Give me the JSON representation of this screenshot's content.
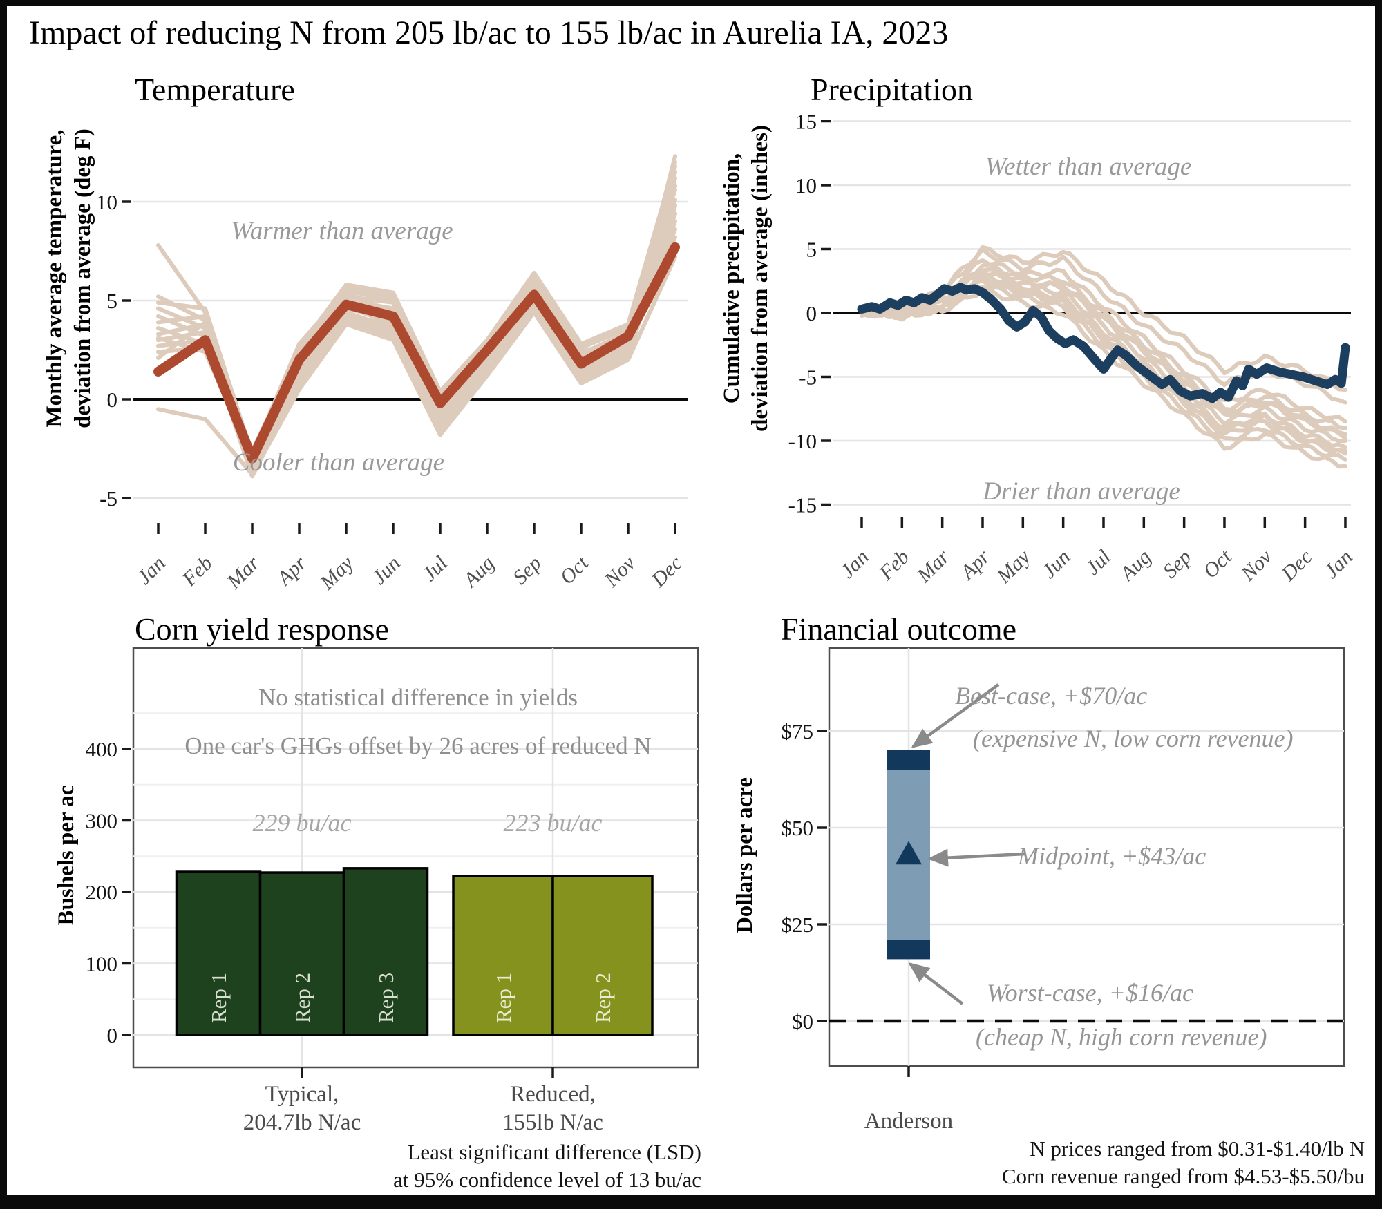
{
  "title": "Impact of reducing N from 205 lb/ac to 155 lb/ac in Aurelia IA, 2023",
  "colors": {
    "highlight_red": "#ad492e",
    "context_tan": "#ddcbbc",
    "navy": "#1d3f5f",
    "dark_green": "#1d421d",
    "olive_green": "#85921e",
    "range_blue": "#7f9cb5",
    "cap_navy": "#12395c",
    "grid_light": "#e4e4e4",
    "grid_minor": "#f0f0f0",
    "annotation_gray": "#999999",
    "arrow_gray": "#8a8a8a",
    "panel_border": "#4d4d4d"
  },
  "chart_data": [
    {
      "id": "temperature",
      "type": "line",
      "title": "Temperature",
      "ylabel_line1": "Monthly average temperature,",
      "ylabel_line2": "deviation from average (deg F)",
      "annotation_above": "Warmer than average",
      "annotation_below": "Cooler than average",
      "x_tick_labels": [
        "Jan",
        "Feb",
        "Mar",
        "Apr",
        "May",
        "Jun",
        "Jul",
        "Aug",
        "Sep",
        "Oct",
        "Nov",
        "Dec"
      ],
      "y_ticks": [
        -5,
        0,
        5,
        10
      ],
      "ylim": [
        -6.5,
        13
      ],
      "zero_line": true,
      "series": [
        {
          "name": "2023",
          "color": "#ad492e",
          "values": [
            1.4,
            3.0,
            -3.0,
            2.0,
            4.8,
            4.2,
            -0.2,
            2.5,
            5.3,
            1.8,
            3.2,
            7.7
          ]
        }
      ],
      "context_series_approx": [
        [
          7.8,
          4.4,
          -3.3,
          1.6,
          5.0,
          4.6,
          -0.6,
          2.2,
          5.8,
          2.2,
          3.0,
          12.3
        ],
        [
          5.2,
          4.0,
          -3.6,
          1.2,
          4.4,
          3.6,
          -1.2,
          1.8,
          5.2,
          1.4,
          2.6,
          11.2
        ],
        [
          4.6,
          3.6,
          -2.6,
          2.4,
          5.6,
          5.2,
          0.3,
          2.9,
          6.2,
          2.6,
          3.6,
          10.6
        ],
        [
          4.2,
          3.2,
          -3.9,
          0.8,
          4.0,
          3.2,
          -1.6,
          1.4,
          4.7,
          1.0,
          2.2,
          9.4
        ],
        [
          3.9,
          4.2,
          -3.1,
          2.0,
          5.2,
          4.9,
          -0.3,
          2.6,
          5.6,
          2.0,
          3.3,
          10.1
        ],
        [
          3.6,
          2.8,
          -3.4,
          1.4,
          4.6,
          4.0,
          -0.9,
          2.0,
          5.0,
          1.6,
          2.8,
          8.6
        ],
        [
          3.3,
          3.8,
          -2.9,
          2.2,
          5.4,
          4.4,
          0.1,
          2.7,
          6.0,
          2.4,
          3.1,
          9.0
        ],
        [
          3.0,
          3.4,
          -3.7,
          1.0,
          4.2,
          3.4,
          -1.4,
          1.6,
          4.9,
          1.2,
          2.4,
          11.8
        ],
        [
          2.7,
          3.0,
          -2.7,
          1.8,
          5.0,
          4.2,
          -0.5,
          2.3,
          5.4,
          1.8,
          2.9,
          8.2
        ],
        [
          2.4,
          2.6,
          -3.2,
          1.5,
          4.7,
          3.8,
          -1.0,
          2.1,
          5.1,
          1.5,
          2.7,
          10.8
        ],
        [
          2.1,
          3.9,
          -3.5,
          2.6,
          5.8,
          5.4,
          0.4,
          3.0,
          6.4,
          2.8,
          3.8,
          12.0
        ],
        [
          -0.5,
          -1.0,
          -3.8,
          0.5,
          3.8,
          3.0,
          -1.8,
          1.2,
          4.4,
          0.8,
          2.0,
          7.2
        ],
        [
          4.9,
          4.6,
          -2.8,
          2.8,
          5.5,
          5.0,
          0.0,
          2.8,
          5.9,
          2.3,
          3.4,
          11.5
        ],
        [
          3.1,
          2.4,
          -3.0,
          1.1,
          4.3,
          3.7,
          -0.8,
          1.9,
          4.8,
          1.3,
          2.5,
          9.8
        ]
      ]
    },
    {
      "id": "precipitation",
      "type": "line",
      "title": "Precipitation",
      "ylabel_line1": "Cumulative precipitation,",
      "ylabel_line2": "deviation from average (inches)",
      "annotation_above": "Wetter than average",
      "annotation_below": "Drier than average",
      "x_tick_labels": [
        "Jan",
        "Feb",
        "Mar",
        "Apr",
        "May",
        "Jun",
        "Jul",
        "Aug",
        "Sep",
        "Oct",
        "Nov",
        "Dec",
        "Jan"
      ],
      "y_ticks": [
        -15,
        -10,
        -5,
        0,
        5,
        10,
        15
      ],
      "ylim": [
        -16.5,
        16.5
      ],
      "zero_line": true,
      "main_series": {
        "name": "2023",
        "color": "#1d3f5f",
        "points": [
          [
            0,
            0.3
          ],
          [
            0.25,
            0.5
          ],
          [
            0.45,
            0.3
          ],
          [
            0.7,
            0.8
          ],
          [
            0.9,
            0.6
          ],
          [
            1.1,
            1.0
          ],
          [
            1.3,
            0.8
          ],
          [
            1.5,
            1.2
          ],
          [
            1.7,
            1.0
          ],
          [
            1.9,
            1.5
          ],
          [
            2.05,
            1.9
          ],
          [
            2.25,
            1.7
          ],
          [
            2.45,
            2.0
          ],
          [
            2.6,
            1.8
          ],
          [
            2.8,
            1.9
          ],
          [
            3.0,
            1.6
          ],
          [
            3.2,
            1.1
          ],
          [
            3.45,
            0.3
          ],
          [
            3.65,
            -0.6
          ],
          [
            3.85,
            -1.1
          ],
          [
            4.05,
            -0.7
          ],
          [
            4.25,
            0.2
          ],
          [
            4.45,
            -0.3
          ],
          [
            4.65,
            -1.4
          ],
          [
            4.85,
            -2.0
          ],
          [
            5.05,
            -2.4
          ],
          [
            5.25,
            -2.1
          ],
          [
            5.5,
            -2.6
          ],
          [
            5.8,
            -3.7
          ],
          [
            6.0,
            -4.4
          ],
          [
            6.2,
            -3.5
          ],
          [
            6.35,
            -2.9
          ],
          [
            6.55,
            -3.3
          ],
          [
            6.85,
            -4.2
          ],
          [
            7.15,
            -4.9
          ],
          [
            7.45,
            -5.6
          ],
          [
            7.65,
            -5.2
          ],
          [
            7.9,
            -6.1
          ],
          [
            8.15,
            -6.5
          ],
          [
            8.45,
            -6.3
          ],
          [
            8.7,
            -6.7
          ],
          [
            8.9,
            -6.2
          ],
          [
            9.1,
            -6.6
          ],
          [
            9.3,
            -5.3
          ],
          [
            9.45,
            -5.7
          ],
          [
            9.6,
            -4.4
          ],
          [
            9.8,
            -4.8
          ],
          [
            10.05,
            -4.3
          ],
          [
            10.35,
            -4.6
          ],
          [
            10.65,
            -4.8
          ],
          [
            10.95,
            -5.0
          ],
          [
            11.25,
            -5.3
          ],
          [
            11.55,
            -5.6
          ],
          [
            11.75,
            -5.2
          ],
          [
            11.9,
            -5.5
          ],
          [
            12,
            -2.7
          ]
        ]
      },
      "context_series_approx": [
        [
          0,
          0.2,
          1.5,
          4.8,
          3.5,
          4.2,
          1.5,
          -1.0,
          -3.0,
          -5.5,
          -4.5,
          -5.5,
          -7.0
        ],
        [
          0,
          0.1,
          1.2,
          4.2,
          3.0,
          3.2,
          0.5,
          -2.0,
          -4.5,
          -7.0,
          -6.0,
          -7.5,
          -8.5
        ],
        [
          0,
          -0.2,
          0.8,
          3.5,
          2.5,
          2.0,
          -0.5,
          -3.0,
          -5.5,
          -8.0,
          -7.0,
          -8.5,
          -9.5
        ],
        [
          0,
          0.3,
          1.8,
          5.0,
          4.0,
          4.8,
          2.5,
          0.0,
          -2.0,
          -4.5,
          -3.5,
          -4.5,
          -6.0
        ],
        [
          0,
          0.0,
          0.5,
          2.8,
          1.8,
          1.2,
          -1.5,
          -4.0,
          -6.5,
          -9.0,
          -8.0,
          -9.5,
          -10.5
        ],
        [
          0,
          -0.3,
          0.3,
          2.2,
          1.2,
          0.5,
          -2.5,
          -5.0,
          -7.5,
          -10.0,
          -9.0,
          -10.5,
          -11.5
        ],
        [
          0,
          0.2,
          1.0,
          3.8,
          2.8,
          2.6,
          0.0,
          -2.5,
          -5.0,
          -7.5,
          -6.5,
          -8.0,
          -9.0
        ],
        [
          0,
          0.1,
          0.6,
          3.0,
          2.0,
          1.6,
          -1.0,
          -3.5,
          -6.0,
          -8.5,
          -7.5,
          -9.0,
          -10.0
        ],
        [
          0,
          -0.1,
          0.4,
          2.5,
          1.5,
          0.8,
          -2.0,
          -4.5,
          -7.0,
          -9.5,
          -8.5,
          -10.0,
          -11.0
        ],
        [
          0,
          0.0,
          0.9,
          3.2,
          2.2,
          2.2,
          -0.2,
          -2.8,
          -5.2,
          -7.8,
          -6.8,
          -8.2,
          -9.8
        ],
        [
          0,
          -0.2,
          0.2,
          1.8,
          0.8,
          0.0,
          -3.0,
          -5.5,
          -8.0,
          -10.5,
          -9.5,
          -11.0,
          -12.0
        ],
        [
          0,
          0.1,
          0.7,
          2.6,
          1.6,
          1.0,
          -1.8,
          -4.2,
          -6.8,
          -9.2,
          -8.2,
          -9.8,
          -10.8
        ]
      ]
    },
    {
      "id": "corn_yield",
      "type": "bar",
      "title": "Corn yield response",
      "ylabel": "Bushels per ac",
      "y_ticks": [
        0,
        100,
        200,
        300,
        400
      ],
      "ylim": [
        -45,
        465
      ],
      "note1": "No statistical difference in yields",
      "note2": "One car's GHGs offset by 26 acres of reduced N",
      "groups": [
        {
          "label_line1": "Typical,",
          "label_line2": "204.7lb N/ac",
          "mean_label": "229 bu/ac",
          "color": "#1d421d",
          "bars": [
            {
              "label": "Rep 1",
              "value": 228
            },
            {
              "label": "Rep 2",
              "value": 227
            },
            {
              "label": "Rep 3",
              "value": 233
            }
          ]
        },
        {
          "label_line1": "Reduced,",
          "label_line2": "155lb N/ac",
          "mean_label": "223 bu/ac",
          "color": "#85921e",
          "bars": [
            {
              "label": "Rep 1",
              "value": 222
            },
            {
              "label": "Rep 2",
              "value": 222
            }
          ]
        }
      ],
      "caption_line1": "Least significant difference (LSD)",
      "caption_line2": "at 95% confidence level of 13 bu/ac"
    },
    {
      "id": "financial_outcome",
      "type": "range-bar",
      "title": "Financial outcome",
      "ylabel": "Dollars per acre",
      "y_ticks": [
        0,
        25,
        50,
        75
      ],
      "y_tick_labels": [
        "$0",
        "$25",
        "$50",
        "$75"
      ],
      "x_label": "Anderson",
      "zero_line_dashed": true,
      "bar": {
        "min": 16,
        "max": 70,
        "midpoint": 43,
        "cap_dollars": 5,
        "color_range": "#7f9cb5",
        "color_caps": "#12395c"
      },
      "annotations": {
        "best_line1": "Best-case, +$70/ac",
        "best_line2": "(expensive N, low corn revenue)",
        "mid_line1": "Midpoint, +$43/ac",
        "worst_line1": "Worst-case, +$16/ac",
        "worst_line2": "(cheap N,  high corn revenue)"
      },
      "caption_line1": "N prices ranged from $0.31-$1.40/lb N",
      "caption_line2": "Corn revenue ranged from $4.53-$5.50/bu"
    }
  ]
}
